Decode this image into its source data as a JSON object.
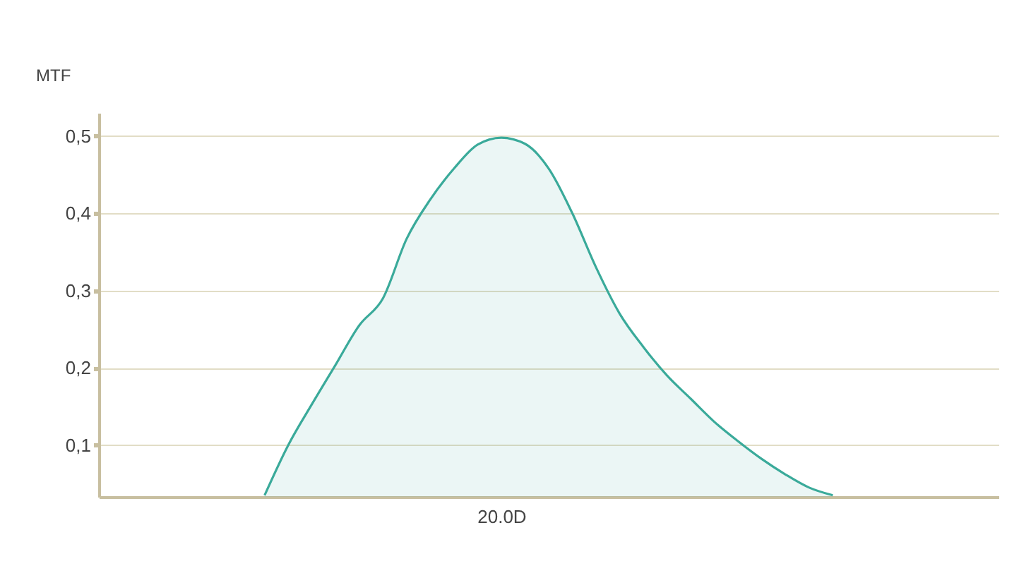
{
  "chart_data": {
    "type": "area",
    "ylabel": "MTF",
    "categories": [
      null,
      null,
      null,
      null,
      null,
      null,
      null,
      null,
      null,
      null,
      null,
      null,
      null,
      null,
      null,
      null,
      null,
      "20.0D",
      null,
      null,
      null,
      null,
      null,
      null,
      null,
      null,
      null,
      null,
      null,
      null,
      null,
      null,
      null,
      null,
      null,
      null,
      null,
      null,
      null
    ],
    "series": [
      {
        "color": "#3aaa9a",
        "values": [
          null,
          null,
          null,
          null,
          null,
          null,
          null,
          0.035,
          0.1,
          0.153,
          0.204,
          0.255,
          0.29,
          0.367,
          0.418,
          0.458,
          0.489,
          0.498,
          0.49,
          0.458,
          0.4,
          0.33,
          0.27,
          0.227,
          0.19,
          0.16,
          0.13,
          0.105,
          0.082,
          0.062,
          0.045,
          0.035,
          null,
          null,
          null,
          null,
          null,
          null,
          null
        ]
      }
    ],
    "ylim": [
      0.033,
      0.53
    ],
    "yticks": [
      {
        "value": 0.1,
        "label": "0,1"
      },
      {
        "value": 0.2,
        "label": "0,2"
      },
      {
        "value": 0.3,
        "label": "0,3"
      },
      {
        "value": 0.4,
        "label": "0,4"
      },
      {
        "value": 0.5,
        "label": "0,5"
      }
    ],
    "grid": "y"
  }
}
